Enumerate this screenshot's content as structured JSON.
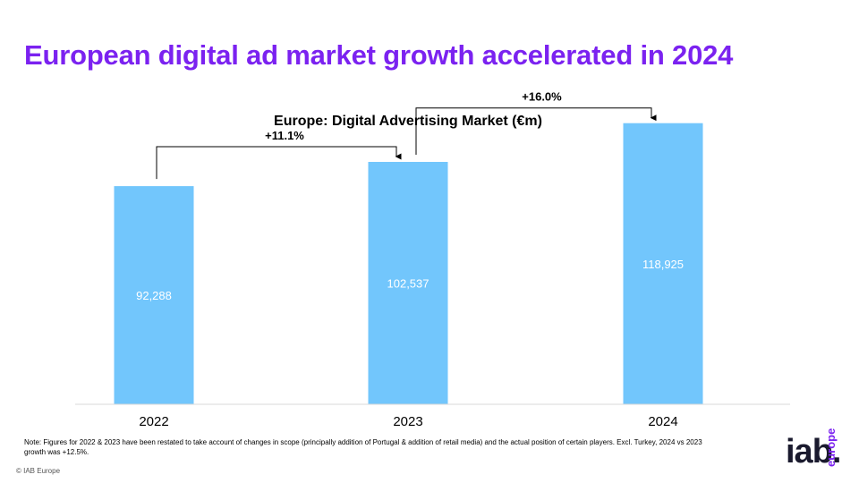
{
  "slide": {
    "title": "European digital ad market growth accelerated in 2024",
    "note": "Note: Figures for 2022 & 2023 have been restated to take account of changes in scope (principally addition of Portugal & addition of retail media) and the actual position of certain players. Excl. Turkey, 2024 vs 2023 growth was +12.5%.",
    "copyright": "© IAB Europe",
    "logo": {
      "main": "iab.",
      "sub": "europe"
    }
  },
  "colors": {
    "title": "#7b22f0",
    "bar": "#72c6fc",
    "bar_label": "#ffffff",
    "text": "#000000"
  },
  "chart_data": {
    "type": "bar",
    "title": "Europe: Digital Advertising Market (€m)",
    "categories": [
      "2022",
      "2023",
      "2024"
    ],
    "values": [
      92288,
      102537,
      118925
    ],
    "value_labels": [
      "92,288",
      "102,537",
      "118,925"
    ],
    "growth_annotations": [
      {
        "from": "2022",
        "to": "2023",
        "label": "+11.1%"
      },
      {
        "from": "2023",
        "to": "2024",
        "label": "+16.0%"
      }
    ],
    "ylim": [
      0,
      140000
    ],
    "grid": false,
    "legend": "none",
    "xlabel": "",
    "ylabel": ""
  }
}
